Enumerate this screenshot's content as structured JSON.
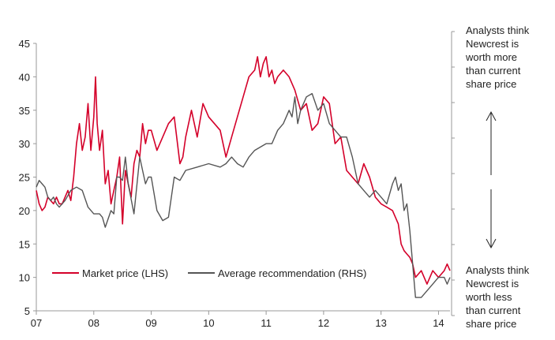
{
  "chart_data": {
    "type": "line",
    "x_tick_labels": [
      "07",
      "08",
      "09",
      "10",
      "11",
      "12",
      "13",
      "14"
    ],
    "x_range": [
      2007.0,
      2014.2
    ],
    "y_ticks": [
      5,
      10,
      15,
      20,
      25,
      30,
      35,
      40,
      45
    ],
    "ylim": [
      5,
      45
    ],
    "grid": false,
    "legend_position": "bottom-left",
    "series": [
      {
        "name": "Market price (LHS)",
        "color": "#d4002a",
        "axis": "left",
        "x": [
          2007.0,
          2007.05,
          2007.1,
          2007.15,
          2007.2,
          2007.25,
          2007.3,
          2007.35,
          2007.4,
          2007.45,
          2007.5,
          2007.55,
          2007.6,
          2007.65,
          2007.7,
          2007.75,
          2007.8,
          2007.85,
          2007.9,
          2007.95,
          2008.0,
          2008.03,
          2008.06,
          2008.1,
          2008.15,
          2008.2,
          2008.25,
          2008.3,
          2008.35,
          2008.4,
          2008.45,
          2008.5,
          2008.55,
          2008.6,
          2008.65,
          2008.7,
          2008.75,
          2008.8,
          2008.85,
          2008.9,
          2008.95,
          2009.0,
          2009.1,
          2009.2,
          2009.3,
          2009.4,
          2009.5,
          2009.55,
          2009.6,
          2009.7,
          2009.8,
          2009.9,
          2010.0,
          2010.1,
          2010.2,
          2010.3,
          2010.4,
          2010.5,
          2010.6,
          2010.7,
          2010.8,
          2010.85,
          2010.9,
          2010.95,
          2011.0,
          2011.05,
          2011.1,
          2011.15,
          2011.2,
          2011.3,
          2011.4,
          2011.5,
          2011.6,
          2011.7,
          2011.8,
          2011.9,
          2012.0,
          2012.1,
          2012.2,
          2012.3,
          2012.4,
          2012.5,
          2012.6,
          2012.7,
          2012.8,
          2012.9,
          2013.0,
          2013.1,
          2013.2,
          2013.3,
          2013.35,
          2013.4,
          2013.45,
          2013.5,
          2013.55,
          2013.6,
          2013.7,
          2013.8,
          2013.9,
          2014.0,
          2014.1,
          2014.15,
          2014.2
        ],
        "y": [
          23,
          21,
          20,
          20.5,
          22,
          21.5,
          21,
          22,
          21,
          21,
          22,
          23,
          21.5,
          25,
          30,
          33,
          29,
          31,
          36,
          29,
          34,
          40,
          33,
          29,
          32,
          24,
          26,
          21,
          23,
          25,
          28,
          18,
          26,
          24,
          22,
          27,
          29,
          28,
          33,
          30,
          32,
          32,
          29,
          31,
          33,
          34,
          27,
          28,
          31,
          35,
          31,
          36,
          34,
          33,
          32,
          28,
          31,
          34,
          37,
          40,
          41,
          43,
          40,
          42,
          43,
          40,
          41,
          39,
          40,
          41,
          40,
          38,
          35,
          36,
          32,
          33,
          37,
          36,
          30,
          31,
          26,
          25,
          24,
          27,
          25,
          22,
          21,
          20.5,
          20,
          18,
          15,
          14,
          13.5,
          13,
          12,
          10,
          11,
          9,
          11,
          10,
          11,
          12,
          11
        ]
      },
      {
        "name": "Average recommendation (RHS)",
        "color": "#555555",
        "axis": "right",
        "x": [
          2007.0,
          2007.05,
          2007.1,
          2007.15,
          2007.2,
          2007.25,
          2007.3,
          2007.35,
          2007.4,
          2007.5,
          2007.6,
          2007.7,
          2007.8,
          2007.9,
          2008.0,
          2008.1,
          2008.15,
          2008.2,
          2008.3,
          2008.35,
          2008.4,
          2008.45,
          2008.5,
          2008.55,
          2008.6,
          2008.7,
          2008.8,
          2008.85,
          2008.9,
          2008.95,
          2009.0,
          2009.1,
          2009.2,
          2009.3,
          2009.4,
          2009.5,
          2009.6,
          2009.8,
          2010.0,
          2010.2,
          2010.3,
          2010.4,
          2010.5,
          2010.6,
          2010.7,
          2010.8,
          2011.0,
          2011.1,
          2011.2,
          2011.3,
          2011.4,
          2011.45,
          2011.5,
          2011.55,
          2011.6,
          2011.7,
          2011.8,
          2011.9,
          2012.0,
          2012.1,
          2012.2,
          2012.3,
          2012.4,
          2012.5,
          2012.6,
          2012.7,
          2012.8,
          2012.9,
          2013.0,
          2013.1,
          2013.2,
          2013.25,
          2013.3,
          2013.35,
          2013.4,
          2013.45,
          2013.5,
          2013.55,
          2013.6,
          2013.7,
          2013.8,
          2013.9,
          2014.0,
          2014.1,
          2014.15,
          2014.2
        ],
        "y": [
          23.5,
          24.5,
          24,
          23.5,
          22,
          21.5,
          22,
          21,
          20.5,
          21.5,
          23,
          23.5,
          23,
          20.5,
          19.5,
          19.5,
          19,
          17.5,
          20,
          19.5,
          25,
          25,
          24.5,
          28,
          24,
          19.5,
          28,
          26,
          24,
          25,
          25,
          20,
          18.5,
          19,
          25,
          24.5,
          26,
          26.5,
          27,
          26.5,
          27,
          28,
          27,
          26.5,
          28,
          29,
          30,
          30,
          32,
          33,
          35,
          34,
          37,
          33,
          35,
          37,
          37.5,
          35,
          36,
          33,
          32,
          31,
          31,
          28,
          24,
          23,
          22,
          23,
          22,
          21,
          24,
          25,
          23,
          24,
          20,
          21,
          17,
          12,
          7,
          7,
          8,
          9,
          10,
          10,
          9,
          10
        ]
      }
    ]
  },
  "annotations": {
    "top": "Analysts think\nNewcrest is\nworth more\nthan current\nshare price",
    "bottom": "Analysts think\nNewcrest is\nworth less\nthan current\nshare price"
  }
}
